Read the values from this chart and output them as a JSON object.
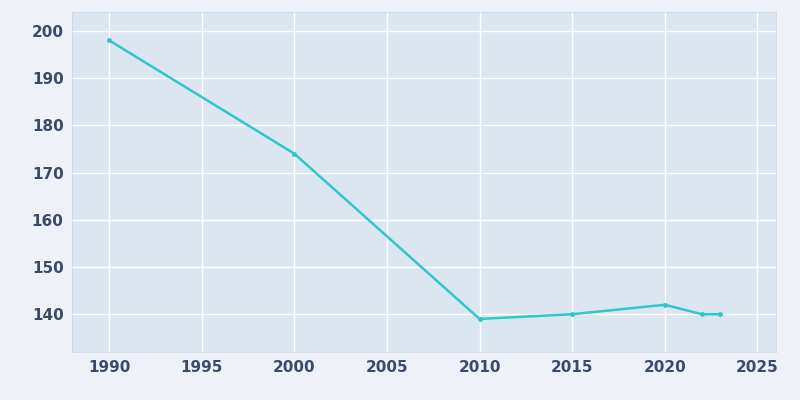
{
  "years": [
    1990,
    2000,
    2010,
    2015,
    2020,
    2022,
    2023
  ],
  "population": [
    198,
    174,
    139,
    140,
    142,
    140,
    140
  ],
  "line_color": "#2ec8c8",
  "background_color": "#eef2f8",
  "plot_bg_color": "#dce6f0",
  "xlabel": "",
  "ylabel": "",
  "xlim": [
    1988,
    2026
  ],
  "ylim": [
    132,
    204
  ],
  "yticks": [
    140,
    150,
    160,
    170,
    180,
    190,
    200
  ],
  "xticks": [
    1990,
    1995,
    2000,
    2005,
    2010,
    2015,
    2020,
    2025
  ],
  "grid_color": "#ffffff",
  "tick_color": "#3a4a6b",
  "spine_color": "#c8d4e4"
}
